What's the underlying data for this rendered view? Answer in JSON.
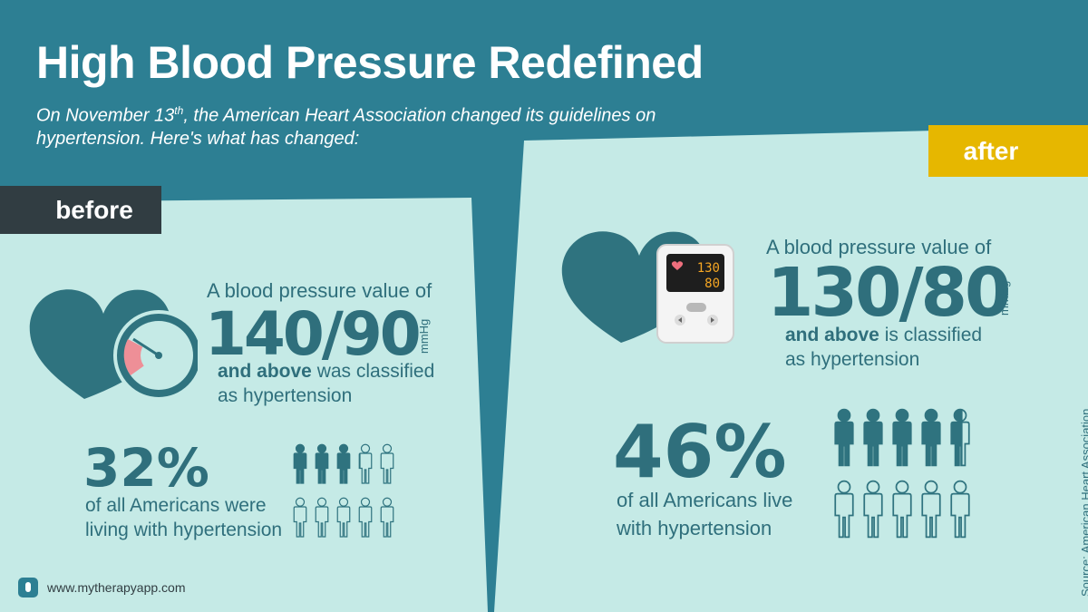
{
  "title": "High Blood Pressure Redefined",
  "subtitle": {
    "part1": "On November 13",
    "sup": "th",
    "part2": ", the American Heart Association changed its guidelines on hypertension. Here's what has changed:"
  },
  "before": {
    "tag": "before",
    "lead": "A blood pressure value of",
    "value": "140/90",
    "unit": "mmHg",
    "desc_bold": "and above",
    "desc_rest": " was classified",
    "desc_line2": "as hypertension",
    "percent": "32%",
    "percent_text_1": "of all Americans were",
    "percent_text_2": "living with hypertension",
    "people_fraction": 0.32
  },
  "after": {
    "tag": "after",
    "lead": "A blood pressure value of",
    "value": "130/80",
    "unit": "mmHg",
    "desc_bold": "and above",
    "desc_rest": " is classified",
    "desc_line2": "as hypertension",
    "percent": "46%",
    "percent_text_1": "of all Americans live",
    "percent_text_2": "with hypertension",
    "people_fraction": 0.46,
    "monitor_sys": "130",
    "monitor_dia": "80"
  },
  "source": "Source: American Heart Association",
  "footer_url": "www.mytherapyapp.com",
  "colors": {
    "background": "#2d7f93",
    "panel": "#c5eae6",
    "text": "#2f6f7c",
    "before_tag": "#313d42",
    "after_tag": "#e6b700"
  }
}
